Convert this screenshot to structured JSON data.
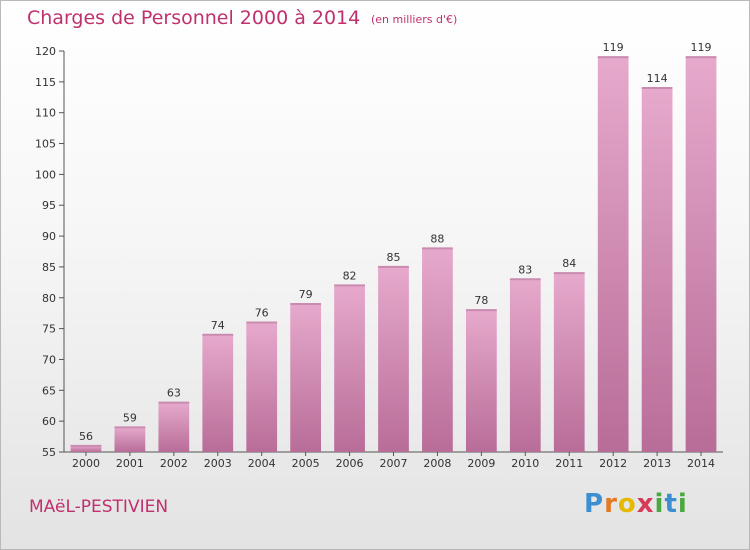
{
  "header": {
    "title": "Charges de Personnel 2000 à 2014",
    "unit": "(en milliers d'€)"
  },
  "footer": {
    "commune": "MAëL-PESTIVIEN",
    "logo": [
      "P",
      "r",
      "o",
      "x",
      "i",
      "t",
      "i"
    ]
  },
  "colors": {
    "bar_top": "#e6a9cc",
    "bar_bottom": "#b86d98",
    "title": "#c0306e",
    "logo": [
      "#3b8ed0",
      "#e37a22",
      "#e6b800",
      "#d83a5a",
      "#49a83f",
      "#3b8ed0",
      "#49a83f"
    ]
  },
  "chart_data": {
    "type": "bar",
    "categories": [
      "2000",
      "2001",
      "2002",
      "2003",
      "2004",
      "2005",
      "2006",
      "2007",
      "2008",
      "2009",
      "2010",
      "2011",
      "2012",
      "2013",
      "2014"
    ],
    "values": [
      56,
      59,
      63,
      74,
      76,
      79,
      82,
      85,
      88,
      78,
      83,
      84,
      119,
      114,
      119
    ],
    "title": "Charges de Personnel 2000 à 2014",
    "xlabel": "",
    "ylabel": "",
    "ylim": [
      55,
      120
    ],
    "yticks": [
      55,
      60,
      65,
      70,
      75,
      80,
      85,
      90,
      95,
      100,
      105,
      110,
      115,
      120
    ],
    "grid": false,
    "legend": "none"
  }
}
